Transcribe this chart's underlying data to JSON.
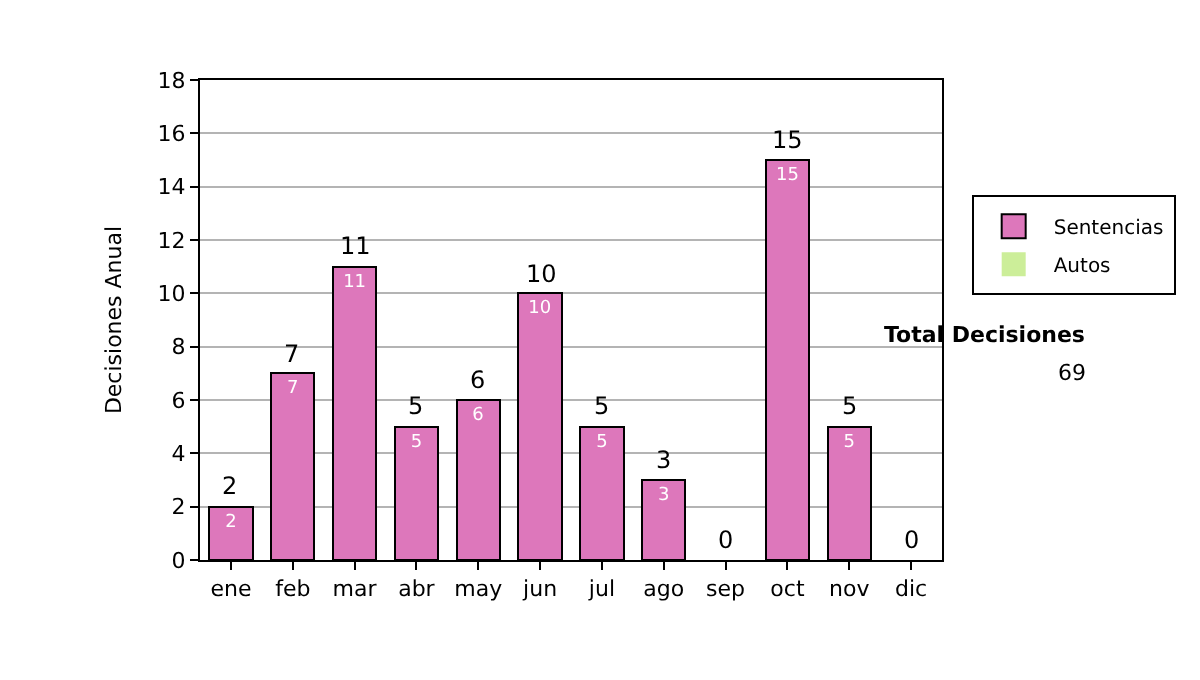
{
  "chart_data": {
    "type": "bar",
    "ylabel": "Decisiones Anual",
    "categories": [
      "ene",
      "feb",
      "mar",
      "abr",
      "may",
      "jun",
      "jul",
      "ago",
      "sep",
      "oct",
      "nov",
      "dic"
    ],
    "series": [
      {
        "name": "Sentencias",
        "color": "#dd77bb",
        "values": [
          2,
          7,
          11,
          5,
          6,
          10,
          5,
          3,
          0,
          15,
          5,
          0
        ],
        "value_labels": [
          "2",
          "7",
          "11",
          "5",
          "6",
          "10",
          "5",
          "3",
          null,
          "15",
          "5",
          null
        ]
      },
      {
        "name": "Autos",
        "color": "#ccee99",
        "values": [
          0,
          0,
          0,
          0,
          0,
          0,
          0,
          0,
          0,
          0,
          0,
          0
        ]
      }
    ],
    "stacked": true,
    "totals": [
      "2",
      "7",
      "11",
      "5",
      "6",
      "10",
      "5",
      "3",
      "0",
      "15",
      "5",
      "0"
    ],
    "ylim": [
      0,
      18
    ],
    "yticks": [
      0,
      2,
      4,
      6,
      8,
      10,
      12,
      14,
      16,
      18
    ],
    "grid": "y",
    "legend": "right",
    "annotations": [
      "Total Decisiones",
      "69"
    ]
  }
}
